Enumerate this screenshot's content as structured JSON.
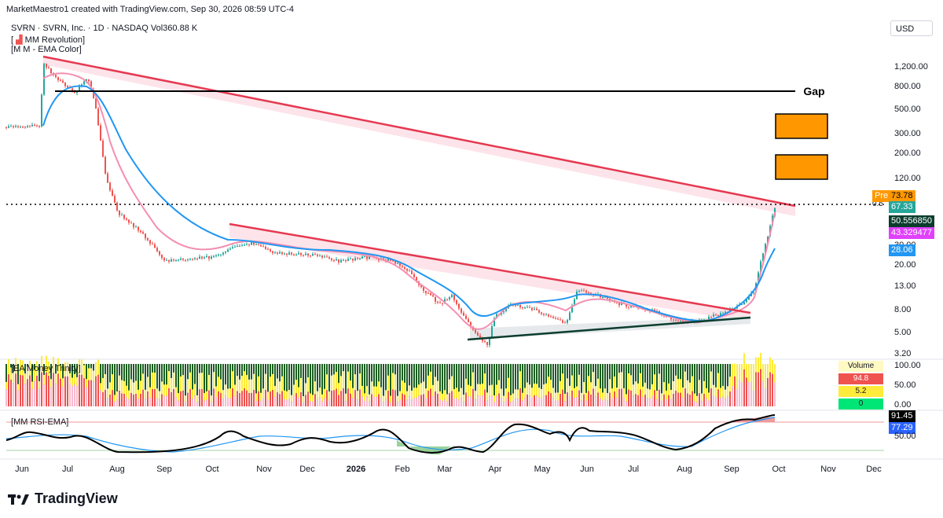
{
  "header": {
    "attribution": "MarketMaestro1 created with TradingView.com, Sep 30, 2026 08:59 UTC-4",
    "symbol_line": "SVRN · SVRN, Inc. · 1D · NASDAQ",
    "volume_label": "Vol",
    "volume_value": "360.88 K",
    "indicator_1": "MM Revolution",
    "indicator_2": "M M - EMA Color",
    "currency": "USD"
  },
  "price_axis": {
    "ticks": [
      "1,200.00",
      "800.00",
      "500.00",
      "300.00",
      "200.00",
      "120.00",
      "80.00",
      "50.00",
      "30.00",
      "20.00",
      "13.00",
      "8.00",
      "5.00",
      "3.20"
    ],
    "fib_label": "0.5"
  },
  "price_tags": {
    "pre_label": "Pre",
    "pre_value": "73.78",
    "last": "67.33",
    "t1": "50.556850",
    "t2": "43.329477",
    "t3": "28.06"
  },
  "annotation": {
    "gap_label": "Gap"
  },
  "money_panel": {
    "title": "EA Money Trinity",
    "axis_ticks": [
      "100.00",
      "50.00",
      "0.00"
    ],
    "table_header": "Volume",
    "rows": [
      "94.8",
      "5.2",
      "0"
    ]
  },
  "rsi_panel": {
    "title": "MM RSI-EMA",
    "axis_tick": "50.00",
    "rsi_value": "91.45",
    "ema_value": "77.29"
  },
  "time_axis": [
    "Jun",
    "Jul",
    "Aug",
    "Sep",
    "Oct",
    "Nov",
    "Dec",
    "2026",
    "Feb",
    "Mar",
    "Apr",
    "May",
    "Jun",
    "Jul",
    "Aug",
    "Sep",
    "Oct",
    "Nov",
    "Dec"
  ],
  "footer": {
    "brand": "TradingView"
  },
  "colors": {
    "up": "#26a69a",
    "down": "#ef5350",
    "ema_fast_fill": "#f8bbd0",
    "ema_slow": "#2196f3",
    "trendline": "#e53950",
    "support": "#0b3d2e",
    "orange_box": "#ff9800"
  },
  "chart_data": {
    "type": "line",
    "title": "SVRN · SVRN, Inc. · 1D · NASDAQ",
    "xlabel": "",
    "ylabel": "",
    "y_scale": "log",
    "ylim": [
      3.2,
      1200
    ],
    "x": [
      "Jun",
      "Jul",
      "Aug",
      "Sep",
      "Oct",
      "Nov",
      "Dec",
      "2026",
      "Feb",
      "Mar",
      "Apr",
      "May",
      "Jun",
      "Jul",
      "Aug",
      "Sep",
      "Oct"
    ],
    "series": [
      {
        "values": [
          1300,
          900,
          70,
          24,
          26,
          28,
          26,
          24,
          22,
          9,
          5,
          8,
          11,
          8.5,
          6.5,
          12,
          67.33
        ]
      }
    ]
  }
}
